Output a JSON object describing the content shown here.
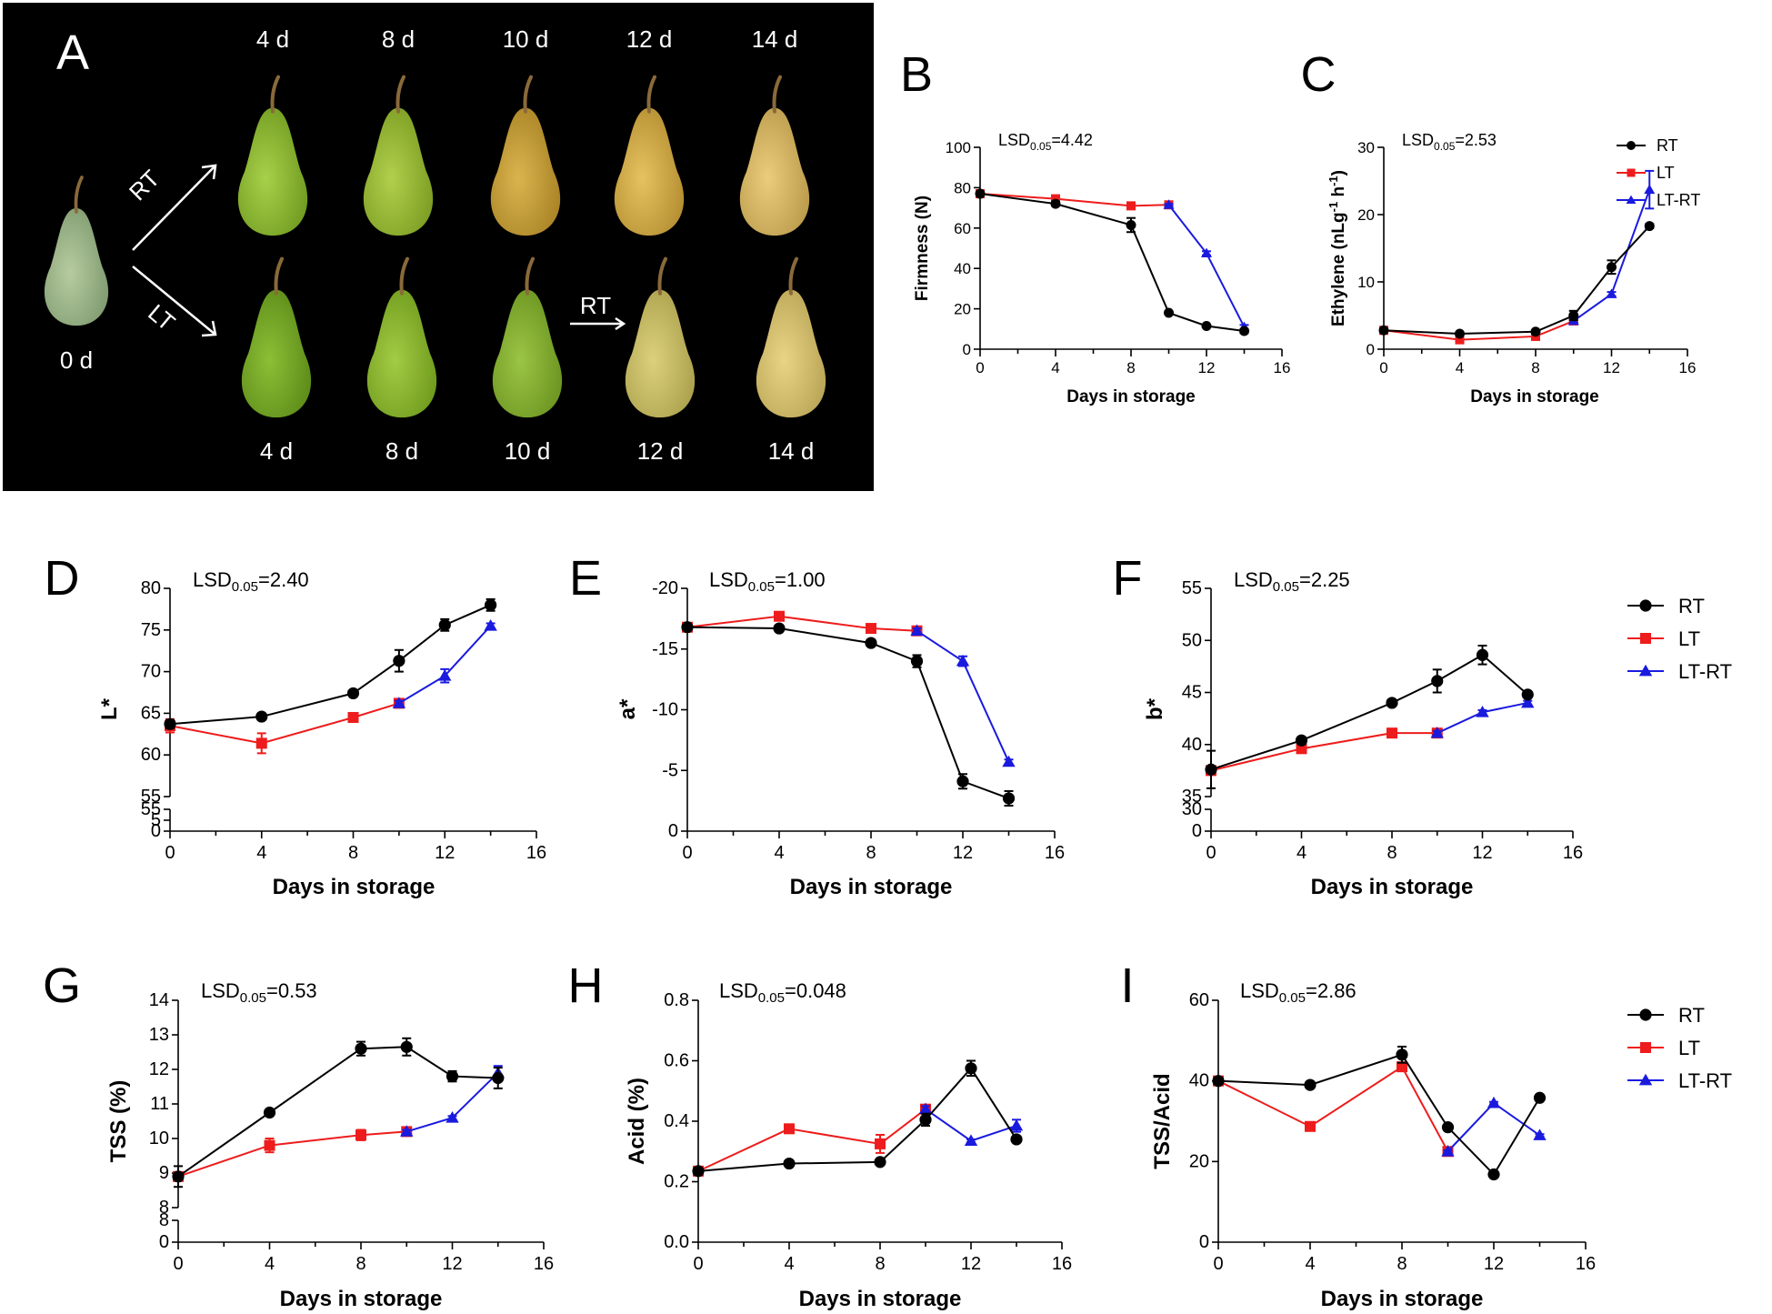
{
  "panel_a": {
    "letter": "A",
    "top_days": [
      "4 d",
      "8 d",
      "10 d",
      "12 d",
      "14 d"
    ],
    "bottom_days": [
      "4 d",
      "8 d",
      "10 d",
      "12 d",
      "14 d"
    ],
    "start_label": "0 d",
    "branch_top": "RT",
    "branch_bottom": "LT",
    "transfer_label": "RT",
    "colors": {
      "background": "#000000",
      "green": "#8fbf3a",
      "yellow": "#e3c66a"
    }
  },
  "colors": {
    "RT": "#000000",
    "LT": "#ee1c1c",
    "LT-RT": "#1a1adf"
  },
  "chart_data": [
    {
      "id": "B",
      "type": "line",
      "letter": "B",
      "lsd": "LSD",
      "lsd_sub": "0.05",
      "lsd_val": "=4.42",
      "xlabel": "Days in storage",
      "ylabel": "Firmness (N)",
      "xlim": [
        0,
        16
      ],
      "ylim": [
        0,
        100
      ],
      "xticks": [
        0,
        4,
        8,
        12,
        16
      ],
      "yticks": [
        0,
        20,
        40,
        60,
        80,
        100
      ],
      "series": [
        {
          "name": "RT",
          "x": [
            0,
            4,
            8,
            10,
            12,
            14
          ],
          "y": [
            77,
            72,
            61.5,
            18,
            11.5,
            9
          ],
          "err": [
            1,
            1,
            3.5,
            0.5,
            0.5,
            1
          ]
        },
        {
          "name": "LT",
          "x": [
            0,
            4,
            8,
            10
          ],
          "y": [
            77,
            74.5,
            71,
            71.5
          ],
          "err": [
            1,
            0.5,
            0.5,
            0.5
          ]
        },
        {
          "name": "LT-RT",
          "x": [
            10,
            12,
            14
          ],
          "y": [
            71.5,
            47.5,
            11
          ],
          "err": [
            0.5,
            1,
            1
          ]
        }
      ],
      "legend": [
        "RT",
        "LT",
        "LT-RT"
      ]
    },
    {
      "id": "C",
      "type": "line",
      "letter": "C",
      "lsd": "LSD",
      "lsd_sub": "0.05",
      "lsd_val": "=2.53",
      "xlabel": "Days in storage",
      "ylabel": "Ethylene (nLg h )",
      "xlim": [
        0,
        16
      ],
      "ylim": [
        0,
        30
      ],
      "xticks": [
        0,
        4,
        8,
        12,
        16
      ],
      "yticks": [
        0,
        10,
        20,
        30
      ],
      "series": [
        {
          "name": "RT",
          "x": [
            0,
            4,
            8,
            10,
            12,
            14
          ],
          "y": [
            2.8,
            2.3,
            2.6,
            5,
            12.2,
            18.3
          ],
          "err": [
            0.2,
            0.2,
            0.2,
            0.7,
            1,
            0.3
          ]
        },
        {
          "name": "LT",
          "x": [
            0,
            4,
            8,
            10
          ],
          "y": [
            2.8,
            1.4,
            1.9,
            4.2
          ],
          "err": [
            0.2,
            0.2,
            0.2,
            0.3
          ]
        },
        {
          "name": "LT-RT",
          "x": [
            10,
            12,
            14
          ],
          "y": [
            4.2,
            8.2,
            23.7
          ],
          "err": [
            0.3,
            0.3,
            2.8
          ]
        }
      ],
      "legend": [
        "RT",
        "LT",
        "LT-RT"
      ]
    },
    {
      "id": "D",
      "type": "line",
      "letter": "D",
      "lsd": "LSD",
      "lsd_sub": "0.05",
      "lsd_val": "=2.40",
      "xlabel": "Days in storage",
      "ylabel": "L*",
      "xlim": [
        0,
        16
      ],
      "ylim": [
        55,
        80
      ],
      "broken_axis": true,
      "xticks": [
        0,
        4,
        8,
        12,
        16
      ],
      "yticks": [
        55,
        60,
        65,
        70,
        75,
        80
      ],
      "low_ticks": [
        "55",
        "5",
        "0"
      ],
      "series": [
        {
          "name": "RT",
          "x": [
            0,
            4,
            8,
            10,
            12,
            14
          ],
          "y": [
            63.7,
            64.6,
            67.4,
            71.3,
            75.6,
            78
          ],
          "err": [
            0.5,
            0.2,
            0.2,
            1.3,
            0.7,
            0.7
          ]
        },
        {
          "name": "LT",
          "x": [
            0,
            4,
            8,
            10
          ],
          "y": [
            63.5,
            61.4,
            64.5,
            66.2
          ],
          "err": [
            0.8,
            1.2,
            0.2,
            0.3
          ]
        },
        {
          "name": "LT-RT",
          "x": [
            10,
            12,
            14
          ],
          "y": [
            66.2,
            69.5,
            75.5
          ],
          "err": [
            0.3,
            0.8,
            0.3
          ]
        }
      ]
    },
    {
      "id": "E",
      "type": "line",
      "letter": "E",
      "lsd": "LSD",
      "lsd_sub": "0.05",
      "lsd_val": "=1.00",
      "xlabel": "Days in storage",
      "ylabel": "a*",
      "xlim": [
        0,
        16
      ],
      "ylim": [
        0,
        -20
      ],
      "xticks": [
        0,
        4,
        8,
        12,
        16
      ],
      "yticks": [
        0,
        -5,
        -10,
        -15,
        -20
      ],
      "series": [
        {
          "name": "RT",
          "x": [
            0,
            4,
            8,
            10,
            12,
            14
          ],
          "y": [
            -16.8,
            -16.7,
            -15.5,
            -14,
            -4.1,
            -2.7
          ],
          "err": [
            0.2,
            0.2,
            0.2,
            0.5,
            0.6,
            0.6
          ]
        },
        {
          "name": "LT",
          "x": [
            0,
            4,
            8,
            10
          ],
          "y": [
            -16.8,
            -17.7,
            -16.7,
            -16.5
          ],
          "err": [
            0.2,
            0.2,
            0.2,
            0.2
          ]
        },
        {
          "name": "LT-RT",
          "x": [
            10,
            12,
            14
          ],
          "y": [
            -16.5,
            -14,
            -5.7
          ],
          "err": [
            0.2,
            0.4,
            0.2
          ]
        }
      ]
    },
    {
      "id": "F",
      "type": "line",
      "letter": "F",
      "lsd": "LSD",
      "lsd_sub": "0.05",
      "lsd_val": "=2.25",
      "xlabel": "Days in storage",
      "ylabel": "b*",
      "xlim": [
        0,
        16
      ],
      "ylim": [
        35,
        55
      ],
      "broken_axis": true,
      "xticks": [
        0,
        4,
        8,
        12,
        16
      ],
      "yticks": [
        35,
        40,
        45,
        50,
        55
      ],
      "low_ticks": [
        "30",
        "0"
      ],
      "series": [
        {
          "name": "RT",
          "x": [
            0,
            4,
            8,
            10,
            12,
            14
          ],
          "y": [
            37.6,
            40.4,
            44,
            46.1,
            48.6,
            44.8
          ],
          "err": [
            1.8,
            0.3,
            0.2,
            1.1,
            0.9,
            0.2
          ]
        },
        {
          "name": "LT",
          "x": [
            0,
            4,
            8,
            10
          ],
          "y": [
            37.5,
            39.6,
            41.1,
            41.1
          ],
          "err": [
            0.3,
            0.3,
            0.2,
            0.2
          ]
        },
        {
          "name": "LT-RT",
          "x": [
            10,
            12,
            14
          ],
          "y": [
            41.1,
            43.1,
            44
          ],
          "err": [
            0.2,
            0.2,
            0.2
          ]
        }
      ],
      "legend": [
        "RT",
        "LT",
        "LT-RT"
      ]
    },
    {
      "id": "G",
      "type": "line",
      "letter": "G",
      "lsd": "LSD",
      "lsd_sub": "0.05",
      "lsd_val": "=0.53",
      "xlabel": "Days in storage",
      "ylabel": "TSS (%)",
      "xlim": [
        0,
        16
      ],
      "ylim": [
        8,
        14
      ],
      "broken_axis": true,
      "xticks": [
        0,
        4,
        8,
        12,
        16
      ],
      "yticks": [
        8,
        9,
        10,
        11,
        12,
        13,
        14
      ],
      "low_ticks": [
        "8",
        "0"
      ],
      "series": [
        {
          "name": "RT",
          "x": [
            0,
            4,
            8,
            10,
            12,
            14
          ],
          "y": [
            8.9,
            10.75,
            12.6,
            12.65,
            11.8,
            11.75
          ],
          "err": [
            0.3,
            0.05,
            0.2,
            0.25,
            0.15,
            0.3
          ]
        },
        {
          "name": "LT",
          "x": [
            0,
            4,
            8,
            10
          ],
          "y": [
            8.9,
            9.8,
            10.1,
            10.2
          ],
          "err": [
            0.1,
            0.2,
            0.15,
            0.05
          ]
        },
        {
          "name": "LT-RT",
          "x": [
            10,
            12,
            14
          ],
          "y": [
            10.2,
            10.6,
            11.9
          ],
          "err": [
            0.05,
            0.05,
            0.2
          ]
        }
      ]
    },
    {
      "id": "H",
      "type": "line",
      "letter": "H",
      "lsd": "LSD",
      "lsd_sub": "0.05",
      "lsd_val": "=0.048",
      "xlabel": "Days in storage",
      "ylabel": "Acid (%)",
      "xlim": [
        0,
        16
      ],
      "ylim": [
        0,
        0.8
      ],
      "xticks": [
        0,
        4,
        8,
        12,
        16
      ],
      "yticks": [
        0.0,
        0.2,
        0.4,
        0.6,
        0.8
      ],
      "ytick_decimals": 1,
      "series": [
        {
          "name": "RT",
          "x": [
            0,
            4,
            8,
            10,
            12,
            14
          ],
          "y": [
            0.235,
            0.26,
            0.265,
            0.405,
            0.575,
            0.34
          ],
          "err": [
            0.01,
            0.005,
            0.01,
            0.02,
            0.025,
            0.005
          ]
        },
        {
          "name": "LT",
          "x": [
            0,
            4,
            8,
            10
          ],
          "y": [
            0.235,
            0.375,
            0.325,
            0.44
          ],
          "err": [
            0.01,
            0.01,
            0.03,
            0.01
          ]
        },
        {
          "name": "LT-RT",
          "x": [
            10,
            12,
            14
          ],
          "y": [
            0.44,
            0.335,
            0.385
          ],
          "err": [
            0.01,
            0.005,
            0.02
          ]
        }
      ]
    },
    {
      "id": "I",
      "type": "line",
      "letter": "I",
      "lsd": "LSD",
      "lsd_sub": "0.05",
      "lsd_val": "=2.86",
      "xlabel": "Days in storage",
      "ylabel": "TSS/Acid",
      "xlim": [
        0,
        16
      ],
      "ylim": [
        0,
        60
      ],
      "xticks": [
        0,
        4,
        8,
        12,
        16
      ],
      "yticks": [
        0,
        20,
        40,
        60
      ],
      "series": [
        {
          "name": "RT",
          "x": [
            0,
            4,
            8,
            10,
            12,
            14
          ],
          "y": [
            40,
            39,
            46.5,
            28.5,
            16.8,
            35.8
          ],
          "err": [
            0.5,
            0.3,
            2,
            0.3,
            0.3,
            0.3
          ]
        },
        {
          "name": "LT",
          "x": [
            0,
            4,
            8,
            10
          ],
          "y": [
            40,
            28.7,
            43.5,
            22.5
          ],
          "err": [
            0.5,
            0.3,
            1,
            0.3
          ]
        },
        {
          "name": "LT-RT",
          "x": [
            10,
            12,
            14
          ],
          "y": [
            22.5,
            34.5,
            26.5
          ],
          "err": [
            0.3,
            0.3,
            0.3
          ]
        }
      ],
      "legend": [
        "RT",
        "LT",
        "LT-RT"
      ]
    }
  ]
}
